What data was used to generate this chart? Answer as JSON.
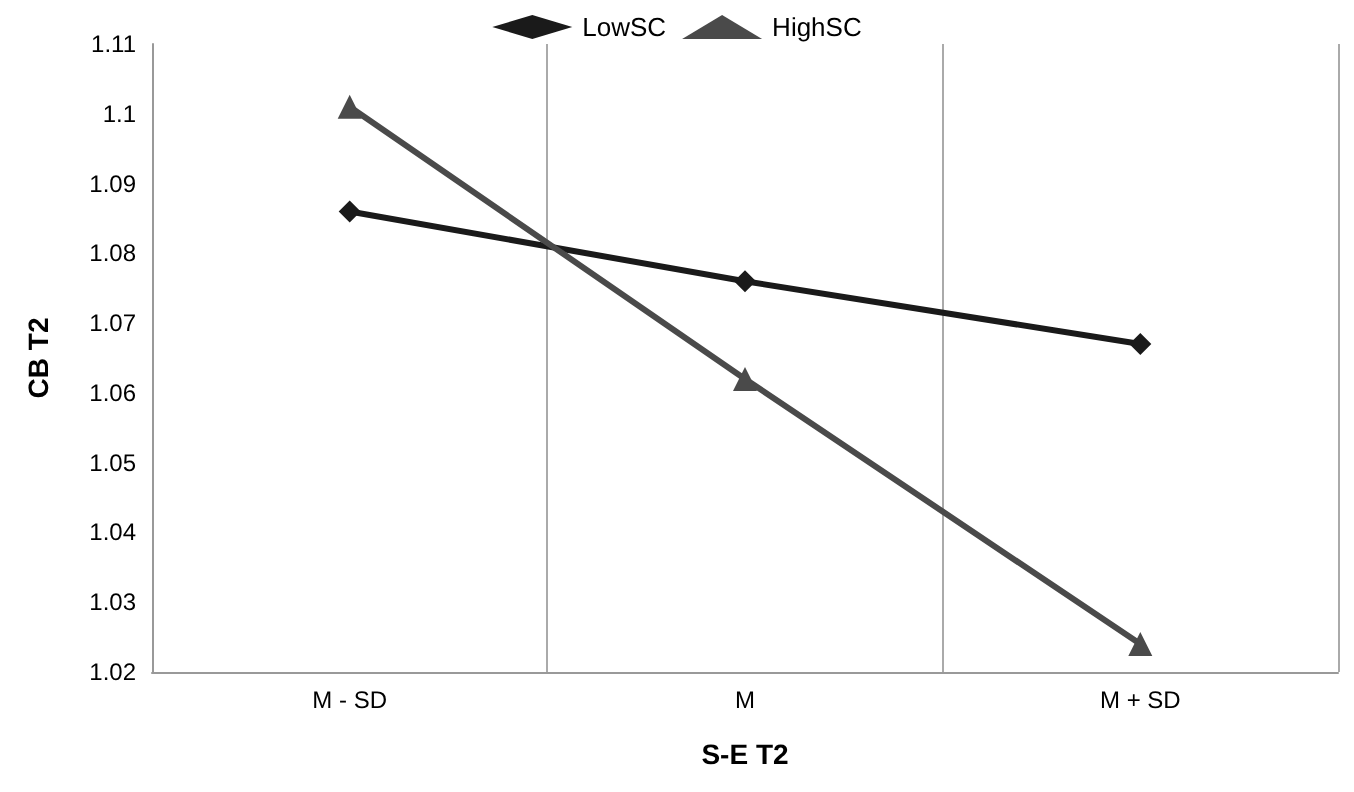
{
  "chart_data": {
    "type": "line",
    "xlabel": "S-E T2",
    "ylabel": "CB T2",
    "categories": [
      "M - SD",
      "M",
      "M + SD"
    ],
    "series": [
      {
        "name": "LowSC",
        "color": "#1a1a1a",
        "marker": "diamond",
        "values": [
          1.086,
          1.076,
          1.067
        ]
      },
      {
        "name": "HighSC",
        "color": "#4a4a4a",
        "marker": "triangle",
        "values": [
          1.101,
          1.062,
          1.024
        ]
      }
    ],
    "ylim": [
      1.02,
      1.11
    ],
    "yticks": [
      1.02,
      1.03,
      1.04,
      1.05,
      1.06,
      1.07,
      1.08,
      1.09,
      1.1,
      1.11
    ],
    "grid": "x",
    "legend": "top"
  }
}
